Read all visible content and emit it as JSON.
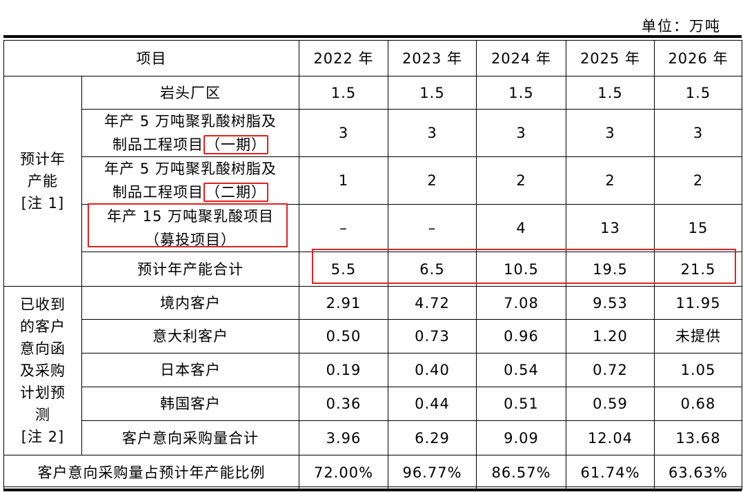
{
  "unit": "单位：万吨",
  "table": {
    "header": [
      "项目",
      "2022 年",
      "2023 年",
      "2024 年",
      "2025 年",
      "2026 年"
    ],
    "groups": [
      {
        "label": [
          "预计年",
          "产能",
          "[注 1]"
        ],
        "rows": [
          {
            "label": [
              "岩头厂区"
            ],
            "values": [
              "1.5",
              "1.5",
              "1.5",
              "1.5",
              "1.5"
            ]
          },
          {
            "label": [
              "年产 5 万吨聚乳酸树脂及",
              "制品工程项目",
              "（一期）"
            ],
            "values": [
              "3",
              "3",
              "3",
              "3",
              "3"
            ]
          },
          {
            "label": [
              "年产 5 万吨聚乳酸树脂及",
              "制品工程项目",
              "（二期）"
            ],
            "values": [
              "1",
              "2",
              "2",
              "2",
              "2"
            ]
          },
          {
            "label": [
              "年产 15 万吨聚乳酸项目",
              "（募投项目）"
            ],
            "values": [
              "–",
              "–",
              "4",
              "13",
              "15"
            ]
          },
          {
            "label": [
              "预计年产能合计"
            ],
            "values": [
              "5.5",
              "6.5",
              "10.5",
              "19.5",
              "21.5"
            ]
          }
        ]
      },
      {
        "label": [
          "已收到",
          "的客户",
          "意向函",
          "及采购",
          "计划预",
          "测",
          "[注 2]"
        ],
        "rows": [
          {
            "label": [
              "境内客户"
            ],
            "values": [
              "2.91",
              "4.72",
              "7.08",
              "9.53",
              "11.95"
            ]
          },
          {
            "label": [
              "意大利客户"
            ],
            "values": [
              "0.50",
              "0.73",
              "0.96",
              "1.20",
              "未提供"
            ]
          },
          {
            "label": [
              "日本客户"
            ],
            "values": [
              "0.19",
              "0.40",
              "0.54",
              "0.72",
              "1.05"
            ]
          },
          {
            "label": [
              "韩国客户"
            ],
            "values": [
              "0.36",
              "0.44",
              "0.51",
              "0.59",
              "0.68"
            ]
          },
          {
            "label": [
              "客户意向采购量合计"
            ],
            "values": [
              "3.96",
              "6.29",
              "9.09",
              "12.04",
              "13.68"
            ]
          }
        ]
      }
    ],
    "footer": {
      "label": "客户意向采购量占预计年产能比例",
      "values": [
        "72.00%",
        "96.77%",
        "86.57%",
        "61.74%",
        "63.63%"
      ]
    }
  }
}
